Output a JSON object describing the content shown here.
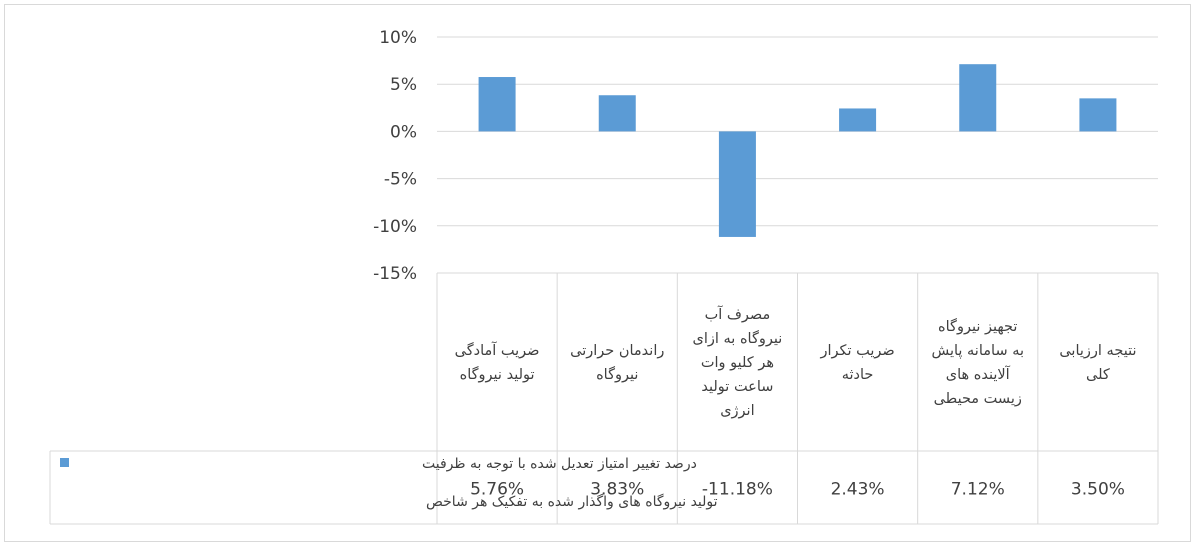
{
  "chart_data": {
    "type": "bar",
    "title": "",
    "xlabel": "",
    "ylabel": "",
    "ylim": [
      -15,
      10
    ],
    "yticks": [
      "10%",
      "5%",
      "0%",
      "-5%",
      "-10%",
      "-15%"
    ],
    "grid": true,
    "legend_position": "bottom-left (data table key)",
    "categories": [
      [
        "نتیجه ارزیابی",
        "کلی"
      ],
      [
        "تجهیز نیروگاه",
        "به سامانه پایش",
        "آلاینده های",
        "زیست محیطی"
      ],
      [
        "ضریب تکرار",
        "حادثه"
      ],
      [
        "مصرف آب",
        "نیروگاه به ازای",
        "هر کلیو وات",
        "ساعت تولید",
        "انرژی"
      ],
      [
        "راندمان حرارتی",
        "نیروگاه"
      ],
      [
        "ضریب آمادگی",
        "تولید نیروگاه"
      ]
    ],
    "series": [
      {
        "name": [
          "درصد تغییر امتیاز تعدیل شده با توجه به ظرفیت",
          "تولید نیروگاه های واگذار شده به تفکیک هر شاخص"
        ],
        "values": [
          3.5,
          7.12,
          2.43,
          -11.18,
          3.83,
          5.76
        ],
        "value_labels": [
          "3.50%",
          "7.12%",
          "2.43%",
          "-11.18%",
          "3.83%",
          "5.76%"
        ],
        "color": "#5b9bd5"
      }
    ]
  }
}
